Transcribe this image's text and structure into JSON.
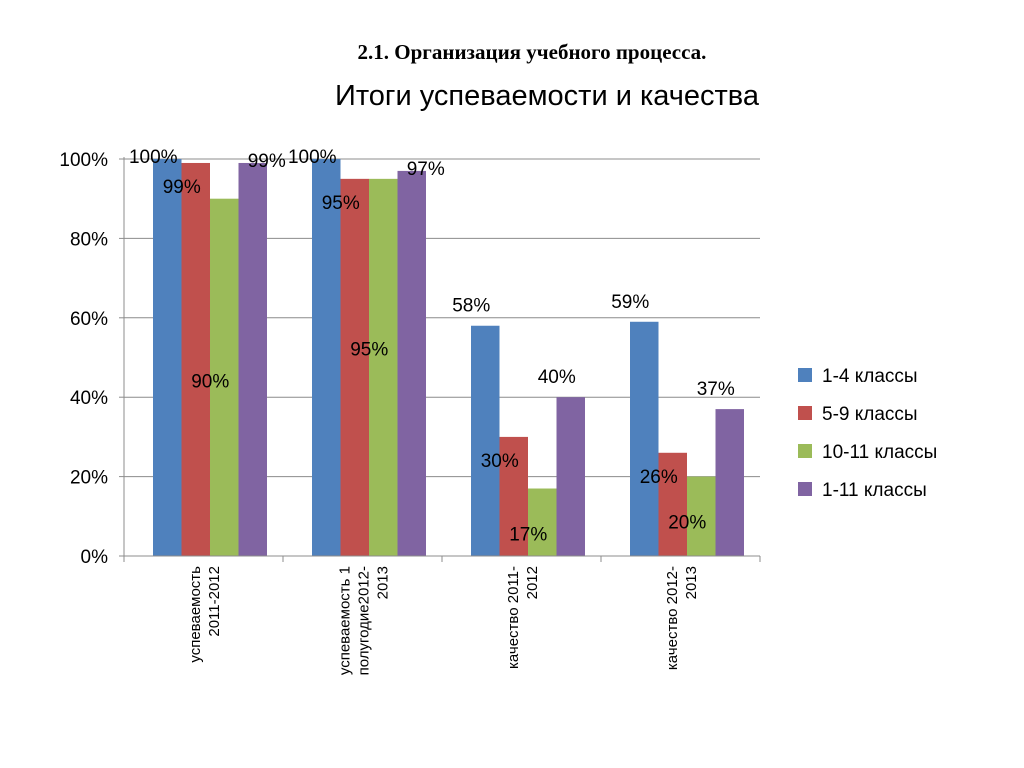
{
  "heading": "2.1. Организация учебного процесса.",
  "chart_data": {
    "type": "bar",
    "title": "Итоги успеваемости и качества",
    "xlabel": "",
    "ylabel": "",
    "ylim": [
      0,
      100
    ],
    "y_ticks": [
      "0%",
      "20%",
      "40%",
      "60%",
      "80%",
      "100%"
    ],
    "grid": true,
    "legend_position": "right",
    "categories": [
      [
        "успеваемость",
        "2011-2012"
      ],
      [
        "успеваемость 1",
        "полугодие2012-",
        "2013"
      ],
      [
        "качество 2011-",
        "2012"
      ],
      [
        "качество 2012-",
        "2013"
      ]
    ],
    "series": [
      {
        "name": "1-4 классы",
        "color": "#4f81bd",
        "values": [
          100,
          100,
          58,
          59
        ],
        "labels": [
          "100%",
          "100%",
          "58%",
          "59%"
        ]
      },
      {
        "name": "5-9 классы",
        "color": "#c0504d",
        "values": [
          99,
          95,
          30,
          26
        ],
        "labels": [
          "99%",
          "95%",
          "30%",
          "26%"
        ]
      },
      {
        "name": "10-11 классы",
        "color": "#9bbb59",
        "values": [
          90,
          95,
          17,
          20
        ],
        "labels": [
          "90%",
          "95%",
          "17%",
          "20%"
        ]
      },
      {
        "name": "1-11 классы",
        "color": "#8064a2",
        "values": [
          99,
          97,
          40,
          37
        ],
        "labels": [
          "99%",
          "97%",
          "40%",
          "37%"
        ]
      }
    ]
  }
}
